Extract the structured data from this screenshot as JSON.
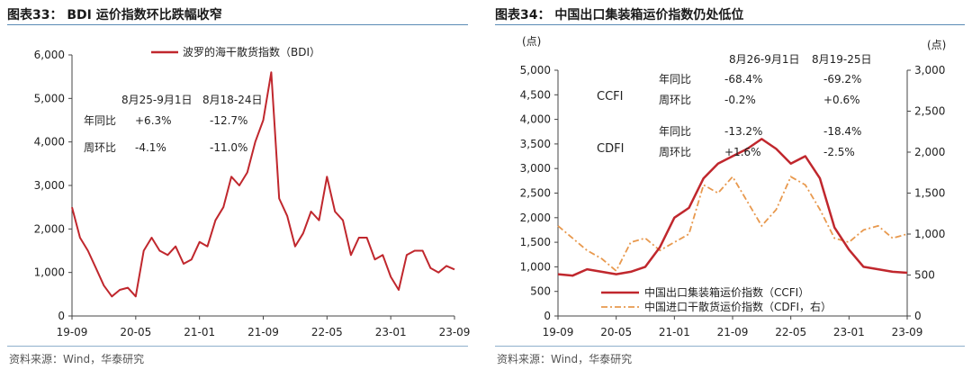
{
  "left": {
    "title": "图表33：  BDI 运价指数环比跌幅收窄",
    "source": "资料来源：Wind，华泰研究",
    "chart_data": {
      "type": "line",
      "title": "图表33：  BDI 运价指数环比跌幅收窄",
      "series": [
        {
          "name": "波罗的海干散货指数（BDI）",
          "color": "#c0272d",
          "points": [
            [
              "2019-09",
              2500
            ],
            [
              "2019-10",
              1800
            ],
            [
              "2019-11",
              1500
            ],
            [
              "2019-12",
              1100
            ],
            [
              "2020-01",
              700
            ],
            [
              "2020-02",
              450
            ],
            [
              "2020-03",
              600
            ],
            [
              "2020-04",
              650
            ],
            [
              "2020-05",
              450
            ],
            [
              "2020-06",
              1500
            ],
            [
              "2020-07",
              1800
            ],
            [
              "2020-08",
              1500
            ],
            [
              "2020-09",
              1400
            ],
            [
              "2020-10",
              1600
            ],
            [
              "2020-11",
              1200
            ],
            [
              "2020-12",
              1300
            ],
            [
              "2021-01",
              1700
            ],
            [
              "2021-02",
              1600
            ],
            [
              "2021-03",
              2200
            ],
            [
              "2021-04",
              2500
            ],
            [
              "2021-05",
              3200
            ],
            [
              "2021-06",
              3000
            ],
            [
              "2021-07",
              3300
            ],
            [
              "2021-08",
              4000
            ],
            [
              "2021-09",
              4500
            ],
            [
              "2021-10",
              5600
            ],
            [
              "2021-11",
              2700
            ],
            [
              "2021-12",
              2300
            ],
            [
              "2022-01",
              1600
            ],
            [
              "2022-02",
              1900
            ],
            [
              "2022-03",
              2400
            ],
            [
              "2022-04",
              2200
            ],
            [
              "2022-05",
              3200
            ],
            [
              "2022-06",
              2400
            ],
            [
              "2022-07",
              2200
            ],
            [
              "2022-08",
              1400
            ],
            [
              "2022-09",
              1800
            ],
            [
              "2022-10",
              1800
            ],
            [
              "2022-11",
              1300
            ],
            [
              "2022-12",
              1400
            ],
            [
              "2023-01",
              900
            ],
            [
              "2023-02",
              600
            ],
            [
              "2023-03",
              1400
            ],
            [
              "2023-04",
              1500
            ],
            [
              "2023-05",
              1500
            ],
            [
              "2023-06",
              1100
            ],
            [
              "2023-07",
              1000
            ],
            [
              "2023-08",
              1150
            ],
            [
              "2023-09",
              1070
            ]
          ]
        }
      ],
      "y_ticks": [
        "0",
        "1,000",
        "2,000",
        "3,000",
        "4,000",
        "5,000",
        "6,000"
      ],
      "ylim": [
        0,
        6000
      ],
      "x_ticks": [
        "19-09",
        "20-05",
        "21-01",
        "21-09",
        "22-05",
        "23-01",
        "23-09"
      ],
      "legend_position": "top",
      "annotation_table": {
        "headers": [
          "8月25-9月1日",
          "8月18-24日"
        ],
        "rows": [
          {
            "label": "年同比",
            "values": [
              "+6.3%",
              "-12.7%"
            ]
          },
          {
            "label": "周环比",
            "values": [
              "-4.1%",
              "-11.0%"
            ]
          }
        ]
      }
    }
  },
  "right": {
    "title": "图表34：  中国出口集装箱运价指数仍处低位",
    "source": "资料来源：Wind，华泰研究",
    "chart_data": {
      "type": "line",
      "title": "图表34：  中国出口集装箱运价指数仍处低位",
      "left_unit": "(点)",
      "right_unit": "(点)",
      "series": [
        {
          "name": "中国出口集装箱运价指数（CCFI）",
          "axis": "left",
          "color": "#c0272d",
          "points": [
            [
              "2019-09",
              850
            ],
            [
              "2019-11",
              820
            ],
            [
              "2020-01",
              950
            ],
            [
              "2020-03",
              900
            ],
            [
              "2020-05",
              850
            ],
            [
              "2020-07",
              900
            ],
            [
              "2020-09",
              1000
            ],
            [
              "2020-11",
              1400
            ],
            [
              "2021-01",
              2000
            ],
            [
              "2021-03",
              2200
            ],
            [
              "2021-05",
              2800
            ],
            [
              "2021-07",
              3100
            ],
            [
              "2021-09",
              3250
            ],
            [
              "2021-11",
              3400
            ],
            [
              "2022-01",
              3600
            ],
            [
              "2022-03",
              3400
            ],
            [
              "2022-05",
              3100
            ],
            [
              "2022-07",
              3250
            ],
            [
              "2022-09",
              2800
            ],
            [
              "2022-11",
              1800
            ],
            [
              "2023-01",
              1350
            ],
            [
              "2023-03",
              1000
            ],
            [
              "2023-05",
              950
            ],
            [
              "2023-07",
              900
            ],
            [
              "2023-09",
              880
            ]
          ]
        },
        {
          "name": "中国进口干散货运价指数（CDFI，右）",
          "axis": "right",
          "color": "#e8994e",
          "points": [
            [
              "2019-09",
              1100
            ],
            [
              "2019-11",
              950
            ],
            [
              "2020-01",
              800
            ],
            [
              "2020-03",
              700
            ],
            [
              "2020-05",
              550
            ],
            [
              "2020-07",
              900
            ],
            [
              "2020-09",
              950
            ],
            [
              "2020-11",
              800
            ],
            [
              "2021-01",
              900
            ],
            [
              "2021-03",
              1000
            ],
            [
              "2021-05",
              1600
            ],
            [
              "2021-07",
              1500
            ],
            [
              "2021-09",
              1700
            ],
            [
              "2021-11",
              1400
            ],
            [
              "2022-01",
              1100
            ],
            [
              "2022-03",
              1300
            ],
            [
              "2022-05",
              1700
            ],
            [
              "2022-07",
              1600
            ],
            [
              "2022-09",
              1300
            ],
            [
              "2022-11",
              950
            ],
            [
              "2023-01",
              900
            ],
            [
              "2023-03",
              1050
            ],
            [
              "2023-05",
              1100
            ],
            [
              "2023-07",
              950
            ],
            [
              "2023-09",
              1000
            ]
          ]
        }
      ],
      "y_ticks_left": [
        "0",
        "500",
        "1,000",
        "1,500",
        "2,000",
        "2,500",
        "3,000",
        "3,500",
        "4,000",
        "4,500",
        "5,000"
      ],
      "ylim_left": [
        0,
        5000
      ],
      "y_ticks_right": [
        "0",
        "500",
        "1,000",
        "1,500",
        "2,000",
        "2,500",
        "3,000"
      ],
      "ylim_right": [
        0,
        3000
      ],
      "x_ticks": [
        "19-09",
        "20-05",
        "21-01",
        "21-09",
        "22-05",
        "23-01",
        "23-09"
      ],
      "legend_position": "bottom-left",
      "annotation_table": {
        "headers": [
          "8月26-9月1日",
          "8月19-25日"
        ],
        "groups": [
          {
            "name": "CCFI",
            "rows": [
              {
                "label": "年同比",
                "values": [
                  "-68.4%",
                  "-69.2%"
                ]
              },
              {
                "label": "周环比",
                "values": [
                  "-0.2%",
                  "+0.6%"
                ]
              }
            ]
          },
          {
            "name": "CDFI",
            "rows": [
              {
                "label": "年同比",
                "values": [
                  "-13.2%",
                  "-18.4%"
                ]
              },
              {
                "label": "周环比",
                "values": [
                  "+1.6%",
                  "-2.5%"
                ]
              }
            ]
          }
        ]
      }
    }
  }
}
